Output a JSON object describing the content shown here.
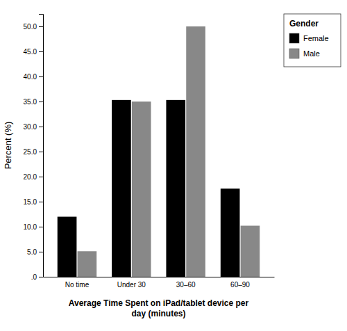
{
  "chart_data": {
    "type": "bar",
    "categories": [
      "No time",
      "Under 30",
      "30–60",
      "60–90"
    ],
    "series": [
      {
        "name": "Female",
        "color": "#000000",
        "values": [
          12.0,
          35.3,
          35.3,
          17.6
        ]
      },
      {
        "name": "Male",
        "color": "#888888",
        "values": [
          5.1,
          35.0,
          50.0,
          10.2
        ]
      }
    ],
    "xlabel": "Average Time Spent on iPad/tablet device per\nday (minutes)",
    "ylabel": "Percent (%)",
    "legend_title": "Gender",
    "legend": "right",
    "ylim": [
      0,
      52.5
    ],
    "yticks": [
      {
        "value": 0.0,
        "label": ".0"
      },
      {
        "value": 5.0,
        "label": "5.0"
      },
      {
        "value": 10.0,
        "label": "10.0"
      },
      {
        "value": 15.0,
        "label": "15.0"
      },
      {
        "value": 20.0,
        "label": "20.0"
      },
      {
        "value": 25.0,
        "label": "25.0"
      },
      {
        "value": 30.0,
        "label": "30.0"
      },
      {
        "value": 35.0,
        "label": "35.0"
      },
      {
        "value": 40.0,
        "label": "40.0"
      },
      {
        "value": 45.0,
        "label": "45.0"
      },
      {
        "value": 50.0,
        "label": "50.0"
      }
    ],
    "grid": false
  }
}
